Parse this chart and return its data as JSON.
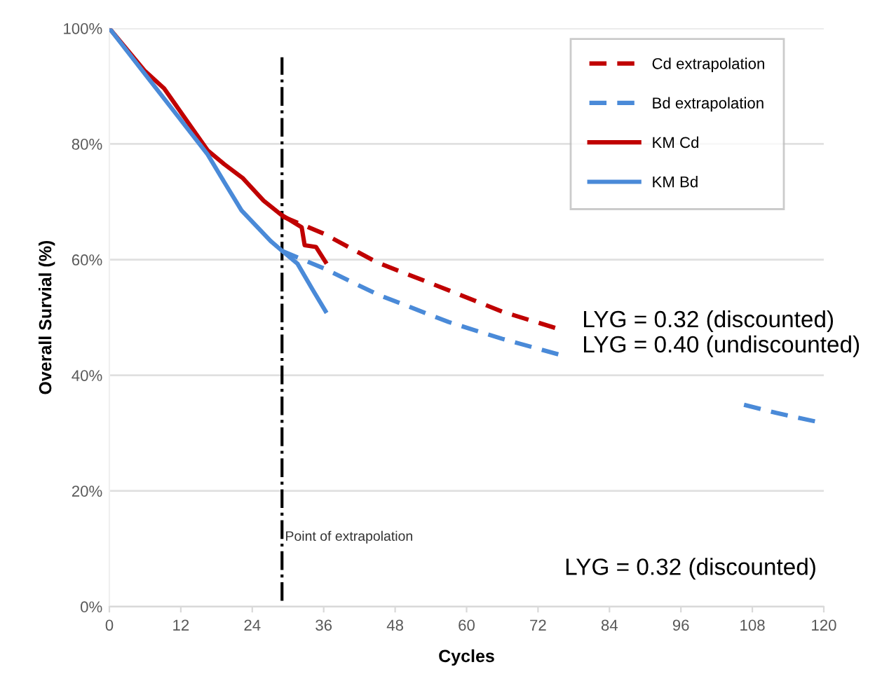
{
  "chart_data": {
    "type": "line",
    "xlabel": "Cycles",
    "ylabel": "Overall Survial (%)",
    "xlim": [
      0,
      120
    ],
    "xticks": [
      0,
      12,
      24,
      36,
      48,
      60,
      72,
      84,
      96,
      108,
      120
    ],
    "ylim": [
      0,
      100
    ],
    "yticks": [
      {
        "value": 0,
        "label": "0%"
      },
      {
        "value": 20,
        "label": "20%"
      },
      {
        "value": 40,
        "label": "40%"
      },
      {
        "value": 60,
        "label": "60%"
      },
      {
        "value": 80,
        "label": "80%"
      },
      {
        "value": 100,
        "label": "100%"
      }
    ],
    "grid": "y",
    "legend": "top right",
    "series": [
      {
        "name": "Cd extrapolation",
        "color": "#c00000",
        "line_style": "dashed",
        "x": [
          29,
          36,
          45,
          57,
          66,
          75.5
        ],
        "values": [
          67.5,
          64.5,
          59.5,
          54.7,
          51,
          48
        ]
      },
      {
        "name": "Bd extrapolation",
        "color": "#4a8ad8",
        "line_style": "dashed",
        "x": [
          29,
          36,
          45,
          57,
          66,
          75.5,
          90,
          106.6,
          112,
          120
        ],
        "values": [
          61.5,
          58.5,
          54,
          49.2,
          46.3,
          43.6,
          null,
          34.9,
          33.5,
          31.7
        ]
      },
      {
        "name": "KM Cd",
        "color": "#c00000",
        "line_style": "solid",
        "x": [
          0,
          5.9,
          9.2,
          16.5,
          19.3,
          22.4,
          25.9,
          28.8,
          32.3,
          32.8,
          34.7,
          36.3
        ],
        "values": [
          100,
          92.7,
          89.6,
          78.9,
          76.5,
          74.1,
          70.2,
          67.8,
          65.6,
          62.5,
          62.2,
          59.6
        ]
      },
      {
        "name": "KM Bd",
        "color": "#4a8ad8",
        "line_style": "solid",
        "x": [
          0,
          6.8,
          16.5,
          19.3,
          22.2,
          27.1,
          28.8,
          31.6,
          34.2,
          36.3
        ],
        "values": [
          100,
          91,
          78.2,
          73.4,
          68.5,
          63.2,
          61.7,
          59.3,
          54.7,
          51.1
        ]
      }
    ],
    "ref_lines": [
      {
        "axis": "x",
        "value": 29,
        "label": "Point of extrapolation",
        "color": "#000000",
        "line_style": "dashdot"
      }
    ],
    "annotations": [
      "LYG = 0.32 (discounted)\nLYG = 0.40 (undiscounted)",
      "LYG = 0.32 (discounted)"
    ]
  }
}
